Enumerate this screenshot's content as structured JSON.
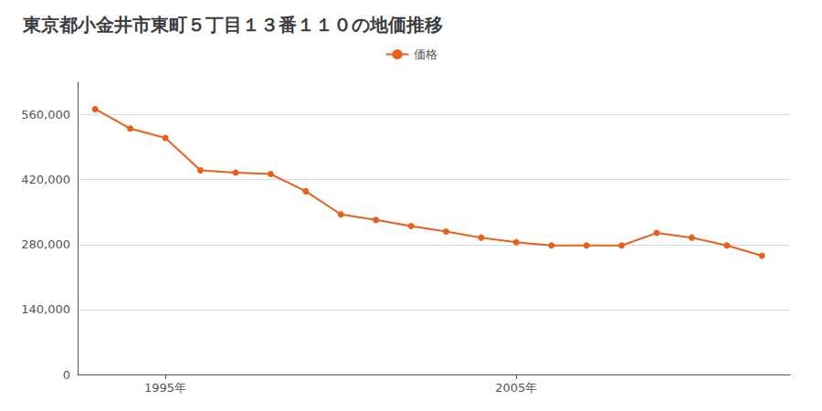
{
  "chart_data": {
    "type": "line",
    "title": "東京都小金井市東町５丁目１３番１１０の地価推移",
    "x": [
      1993,
      1994,
      1995,
      1996,
      1997,
      1998,
      1999,
      2000,
      2001,
      2002,
      2003,
      2004,
      2005,
      2006,
      2007,
      2008,
      2009,
      2010,
      2011,
      2012
    ],
    "series": [
      {
        "name": "価格",
        "color": "#E8601C",
        "values": [
          572000,
          530000,
          510000,
          440000,
          435000,
          432000,
          395000,
          345000,
          333000,
          320000,
          308000,
          295000,
          285000,
          278000,
          278000,
          278000,
          305000,
          295000,
          278000,
          256000
        ]
      }
    ],
    "xlim": [
      1992.5,
      2012.8
    ],
    "xticks": [
      {
        "value": 1995,
        "label": "1995年"
      },
      {
        "value": 2005,
        "label": "2005年"
      }
    ],
    "ylim": [
      0,
      630000
    ],
    "yticks": [
      0,
      {
        "value": 140000,
        "label": "140,000"
      },
      {
        "value": 280000,
        "label": "280,000"
      },
      {
        "value": 420000,
        "label": "420,000"
      },
      {
        "value": 560000,
        "label": "560,000"
      }
    ],
    "grid": true,
    "legend": "top",
    "marker": "circle"
  }
}
